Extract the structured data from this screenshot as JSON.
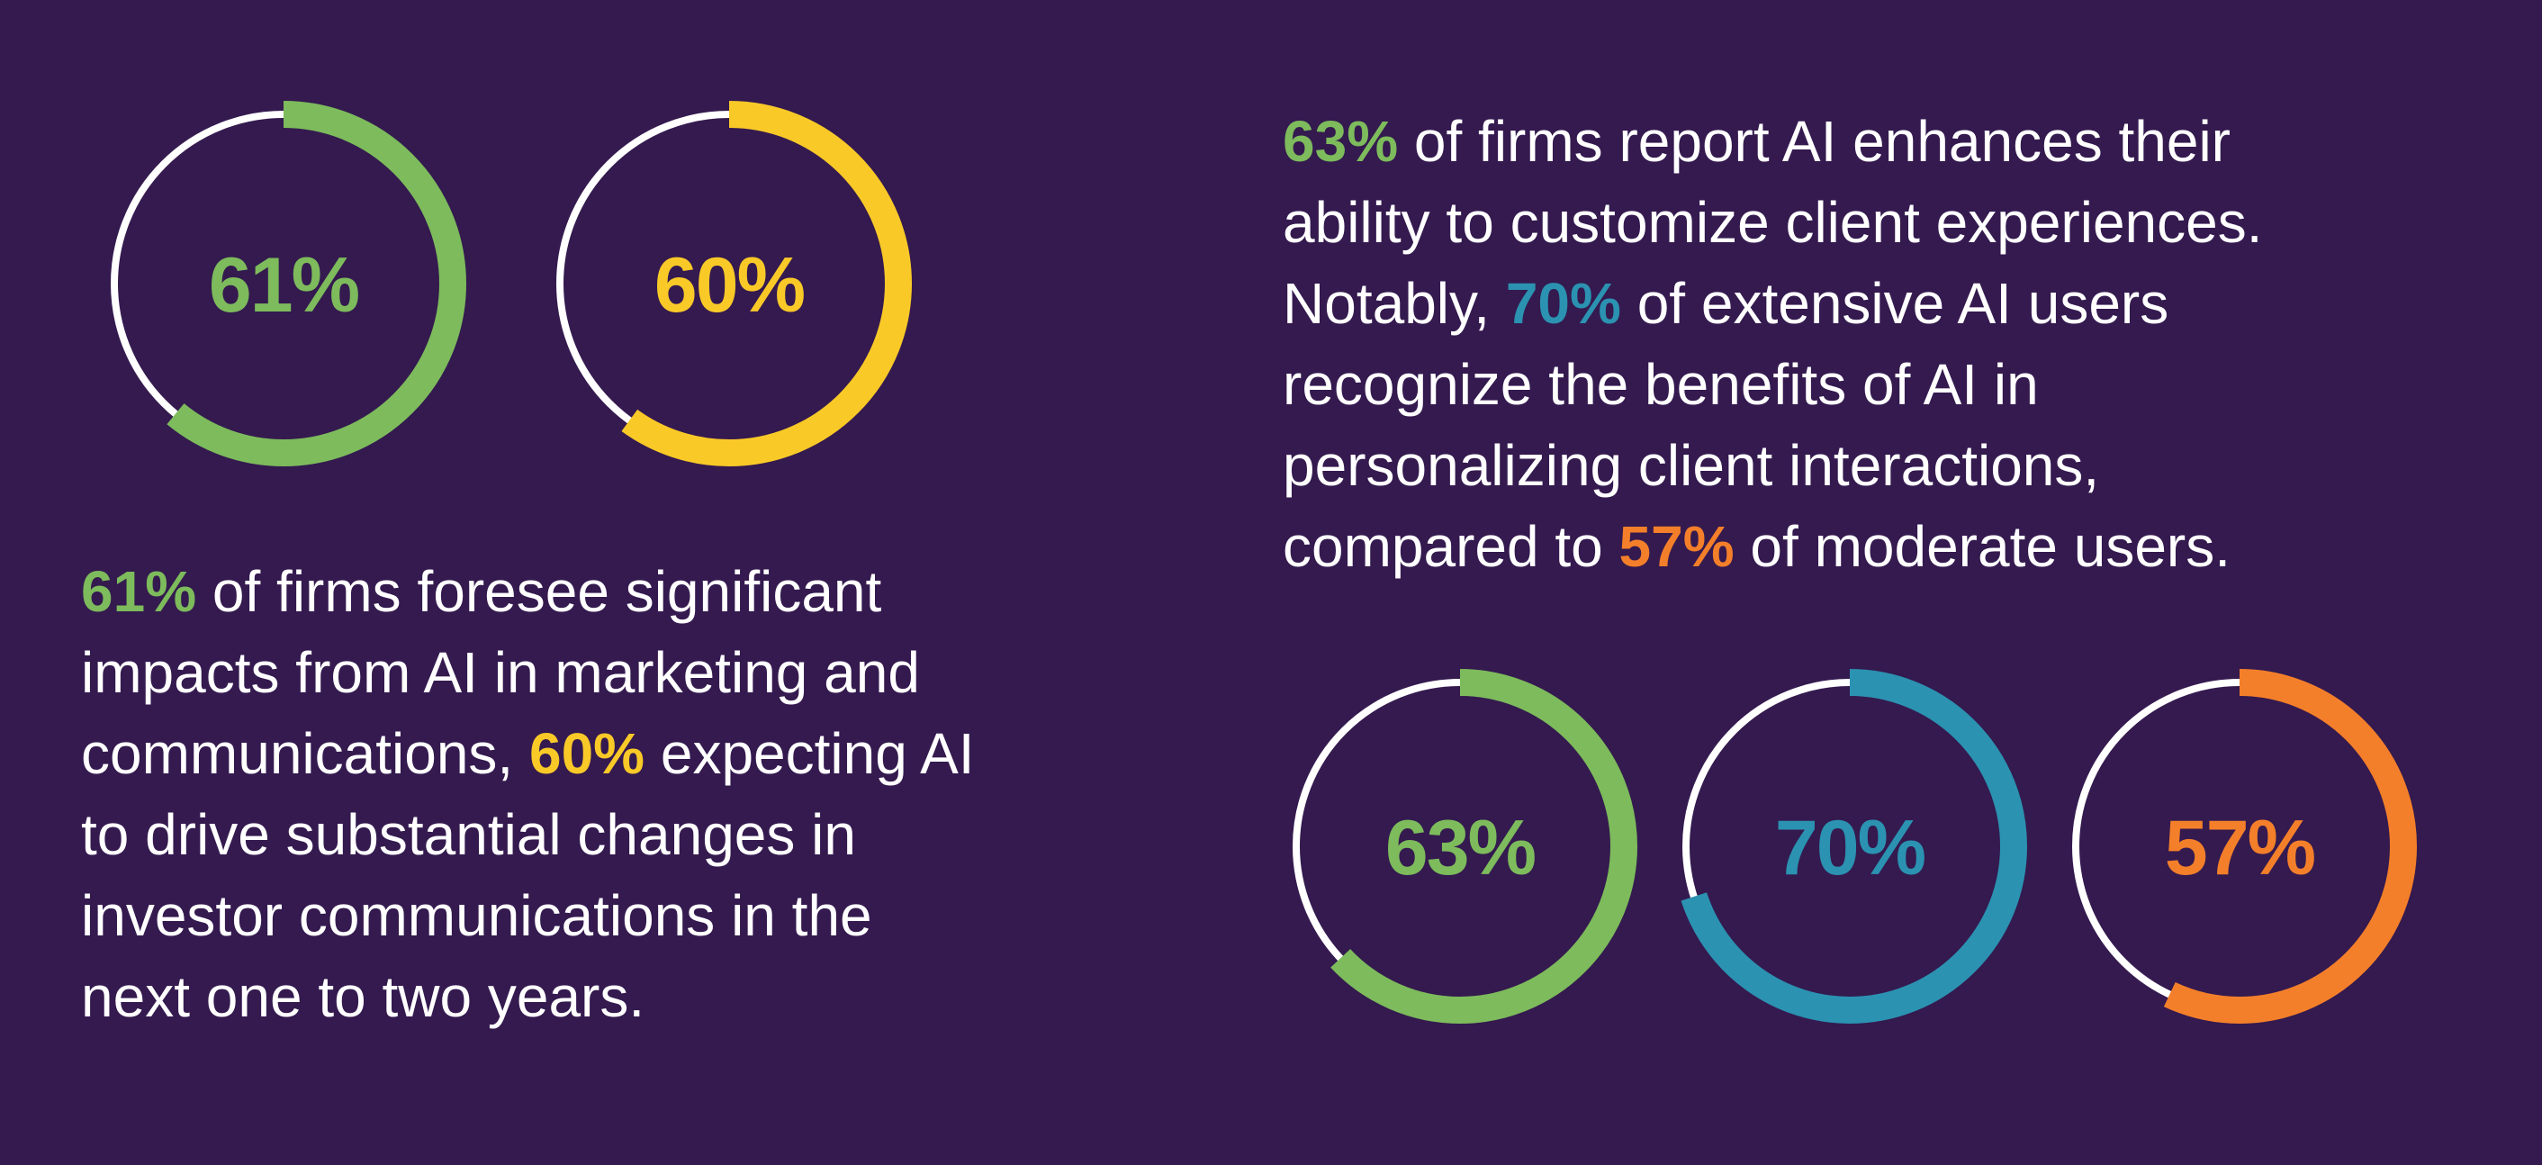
{
  "colors": {
    "background": "#341a4f",
    "track": "#ffffff",
    "green": "#7dbb5c",
    "yellow": "#f9c928",
    "teal": "#2b92b1",
    "orange": "#f47f2a",
    "text": "#ffffff"
  },
  "chart_data": [
    {
      "type": "pie",
      "subtype": "donut",
      "group": "left",
      "series": [
        {
          "label": "61%",
          "value": 61,
          "color": "#7dbb5c"
        },
        {
          "label": "60%",
          "value": 60,
          "color": "#f9c928"
        }
      ]
    },
    {
      "type": "pie",
      "subtype": "donut",
      "group": "right",
      "series": [
        {
          "label": "63%",
          "value": 63,
          "color": "#7dbb5c"
        },
        {
          "label": "70%",
          "value": 70,
          "color": "#2b92b1"
        },
        {
          "label": "57%",
          "value": 57,
          "color": "#f47f2a"
        }
      ]
    }
  ],
  "left_text": {
    "lines": [
      [
        {
          "t": "61%",
          "c": "green"
        },
        {
          "t": " of firms foresee significant"
        }
      ],
      [
        {
          "t": "impacts from AI in marketing and"
        }
      ],
      [
        {
          "t": "communications, "
        },
        {
          "t": "60%",
          "c": "yellow"
        },
        {
          "t": " expecting AI"
        }
      ],
      [
        {
          "t": "to drive substantial changes in"
        }
      ],
      [
        {
          "t": "investor communications in the"
        }
      ],
      [
        {
          "t": "next one to two years."
        }
      ]
    ]
  },
  "right_text": {
    "lines": [
      [
        {
          "t": "63%",
          "c": "green"
        },
        {
          "t": " of firms report AI enhances their"
        }
      ],
      [
        {
          "t": "ability to customize client experiences."
        }
      ],
      [
        {
          "t": "Notably, "
        },
        {
          "t": "70%",
          "c": "teal"
        },
        {
          "t": " of extensive AI users"
        }
      ],
      [
        {
          "t": "recognize the benefits of AI in"
        }
      ],
      [
        {
          "t": "personalizing client interactions,"
        }
      ],
      [
        {
          "t": "compared to "
        },
        {
          "t": "57%",
          "c": "orange"
        },
        {
          "t": " of moderate users."
        }
      ]
    ]
  }
}
